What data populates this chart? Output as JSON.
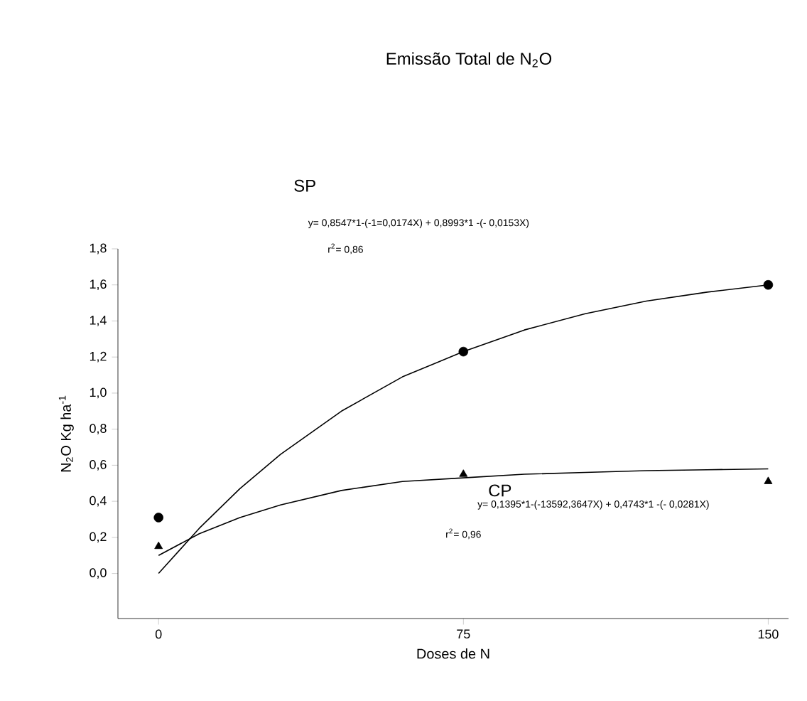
{
  "chart_data": {
    "type": "scatter",
    "title": "Emissão Total de N$_{2}$O",
    "xlabel": "Doses de N",
    "ylabel": "N$_{2}$O Kg ha$^{-1}$",
    "x": [
      0,
      75,
      150
    ],
    "series": [
      {
        "marker": "circle",
        "color": "#000000",
        "values": [
          0.31,
          1.23,
          1.6
        ]
      },
      {
        "marker": "triangle",
        "color": "#000000",
        "values": [
          0.15,
          0.55,
          0.51
        ]
      },
      {
        "type": "line",
        "marker": "none",
        "color": "#000000",
        "x": [
          0,
          10,
          20,
          30,
          45,
          60,
          75,
          90,
          105,
          120,
          135,
          150
        ],
        "values": [
          0,
          0.25,
          0.47,
          0.66,
          0.9,
          1.09,
          1.23,
          1.35,
          1.44,
          1.51,
          1.56,
          1.6
        ]
      },
      {
        "type": "line",
        "marker": "none",
        "color": "#000000",
        "x": [
          0,
          10,
          20,
          30,
          45,
          60,
          75,
          90,
          105,
          120,
          135,
          150
        ],
        "values": [
          0.1,
          0.22,
          0.31,
          0.38,
          0.46,
          0.51,
          0.53,
          0.55,
          0.56,
          0.57,
          0.575,
          0.58
        ]
      }
    ],
    "xlim": [
      -10,
      155
    ],
    "ylim": [
      -0.25,
      1.8
    ],
    "xticks": [
      0,
      75,
      150
    ],
    "yticks": [
      {
        "value": 0,
        "label": "0,0"
      },
      {
        "value": 0.2,
        "label": "0,2"
      },
      {
        "value": 0.4,
        "label": "0,4"
      },
      {
        "value": 0.6,
        "label": "0,6"
      },
      {
        "value": 0.8,
        "label": "0,8"
      },
      {
        "value": 1.0,
        "label": "1,0"
      },
      {
        "value": 1.2,
        "label": "1,2"
      },
      {
        "value": 1.4,
        "label": "1,4"
      },
      {
        "value": 1.6,
        "label": "1,6"
      },
      {
        "value": 1.8,
        "label": "1,8"
      }
    ],
    "annotations": [
      "SP",
      "y= 0,8547*1-(-1=0,0174X) + 0,8993*1 -(- 0,0153X)",
      "r$^{2}$= 0,86",
      "CP",
      "y= 0,1395*1-(-13592,3647X) + 0,4743*1 -(- 0,0281X)",
      "r$^{2}$= 0,96"
    ]
  }
}
